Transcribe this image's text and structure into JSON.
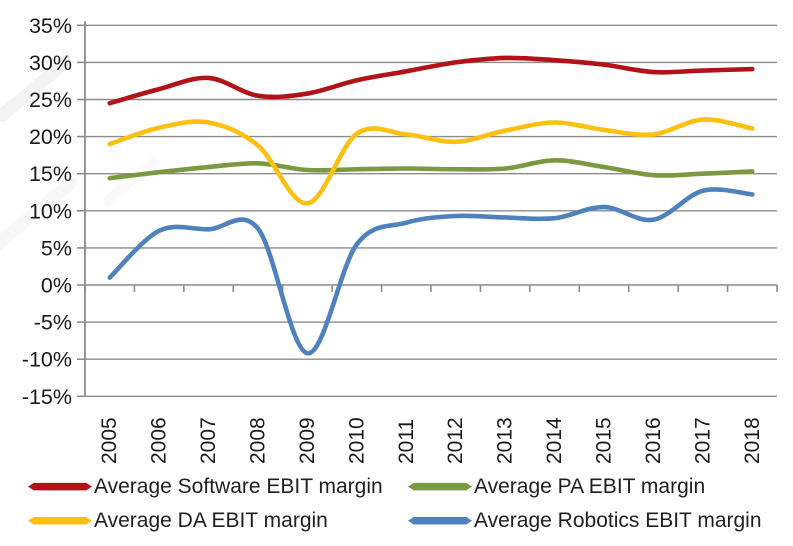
{
  "chart_data": {
    "type": "line",
    "title": "",
    "xlabel": "",
    "ylabel": "",
    "categories": [
      "2005",
      "2006",
      "2007",
      "2008",
      "2009",
      "2010",
      "2011",
      "2012",
      "2013",
      "2014",
      "2015",
      "2016",
      "2017",
      "2018"
    ],
    "series": [
      {
        "name": "Average Software EBIT margin",
        "color": "#B11318",
        "values": [
          24.5,
          26.4,
          27.9,
          25.5,
          25.8,
          27.6,
          28.8,
          30.0,
          30.6,
          30.3,
          29.7,
          28.7,
          28.9,
          29.1
        ]
      },
      {
        "name": "Average PA EBIT margin",
        "color": "#7A9940",
        "values": [
          14.4,
          15.2,
          15.9,
          16.4,
          15.5,
          15.6,
          15.7,
          15.6,
          15.7,
          16.8,
          15.9,
          14.8,
          15.0,
          15.3
        ]
      },
      {
        "name": "Average DA EBIT margin",
        "color": "#FBC011",
        "values": [
          19.0,
          21.2,
          21.9,
          18.8,
          11.0,
          20.4,
          20.3,
          19.3,
          20.8,
          21.9,
          20.9,
          20.3,
          22.3,
          21.1
        ]
      },
      {
        "name": "Average Robotics EBIT margin",
        "color": "#4F81BD",
        "values": [
          1.0,
          7.3,
          7.5,
          7.6,
          -9.2,
          5.5,
          8.4,
          9.3,
          9.1,
          9.0,
          10.5,
          8.8,
          12.7,
          12.2
        ]
      }
    ],
    "ylim": [
      -15,
      35
    ],
    "ytick_step": 5,
    "y_tick_labels": [
      "35%",
      "30%",
      "25%",
      "20%",
      "15%",
      "10%",
      "5%",
      "0%",
      "-5%",
      "-10%",
      "-15%"
    ],
    "grid": true,
    "smoothed_lines": true,
    "legend_position": "bottom",
    "legend_rows": [
      [
        0,
        1
      ],
      [
        2,
        3
      ]
    ],
    "axis_color": "#8C8C8C",
    "grid_color": "#8C8C8C",
    "tick_label_color": "#1a1a1a"
  }
}
